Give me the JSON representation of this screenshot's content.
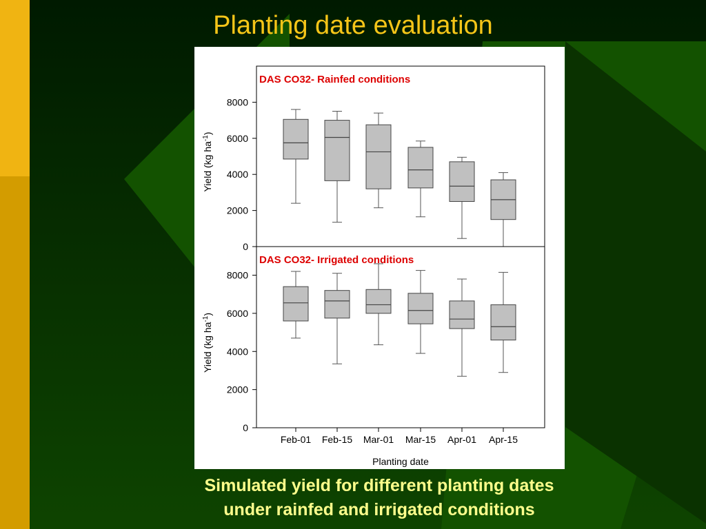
{
  "slide": {
    "title": "Planting date evaluation",
    "caption_line1": "Simulated yield for different planting dates",
    "caption_line2": "under rainfed and irrigated conditions"
  },
  "colors": {
    "background_dark": "#002a00",
    "background_green": "#135200",
    "accent_yellow": "#f0b412",
    "accent_gold": "#d39c00",
    "title_text": "#f5c518",
    "caption_text": "#ffff8c",
    "panel_label": "#dd0000",
    "box_fill": "#c0c0c0"
  },
  "chart_data": [
    {
      "type": "box",
      "panel_label": "DAS CO32- Rainfed conditions",
      "ylabel_main": "Yield (kg ha",
      "ylabel_sup": "-1",
      "ylabel_close": ")",
      "ylim": [
        0,
        10000
      ],
      "yticks": [
        0,
        2000,
        4000,
        6000,
        8000
      ],
      "categories": [
        "Feb-01",
        "Feb-15",
        "Mar-01",
        "Mar-15",
        "Apr-01",
        "Apr-15"
      ],
      "boxes": [
        {
          "min": 2400,
          "q1": 4850,
          "median": 5750,
          "q3": 7050,
          "max": 7600
        },
        {
          "min": 1350,
          "q1": 3650,
          "median": 6050,
          "q3": 7000,
          "max": 7500
        },
        {
          "min": 2150,
          "q1": 3200,
          "median": 5250,
          "q3": 6750,
          "max": 7400
        },
        {
          "min": 1650,
          "q1": 3250,
          "median": 4250,
          "q3": 5500,
          "max": 5850
        },
        {
          "min": 450,
          "q1": 2500,
          "median": 3350,
          "q3": 4700,
          "max": 4950
        },
        {
          "min": 0,
          "q1": 1500,
          "median": 2600,
          "q3": 3700,
          "max": 4100
        }
      ]
    },
    {
      "type": "box",
      "panel_label": "DAS CO32- Irrigated conditions",
      "ylabel_main": "Yield (kg ha",
      "ylabel_sup": "-1",
      "ylabel_close": ")",
      "ylim": [
        0,
        9500
      ],
      "yticks": [
        0,
        2000,
        4000,
        6000,
        8000
      ],
      "categories": [
        "Feb-01",
        "Feb-15",
        "Mar-01",
        "Mar-15",
        "Apr-01",
        "Apr-15"
      ],
      "xlabel": "Planting date",
      "boxes": [
        {
          "min": 4700,
          "q1": 5600,
          "median": 6550,
          "q3": 7400,
          "max": 8200
        },
        {
          "min": 3350,
          "q1": 5750,
          "median": 6650,
          "q3": 7200,
          "max": 8100
        },
        {
          "min": 4350,
          "q1": 6000,
          "median": 6450,
          "q3": 7250,
          "max": 8600
        },
        {
          "min": 3900,
          "q1": 5450,
          "median": 6150,
          "q3": 7050,
          "max": 8250
        },
        {
          "min": 2700,
          "q1": 5200,
          "median": 5700,
          "q3": 6650,
          "max": 7800
        },
        {
          "min": 2900,
          "q1": 4600,
          "median": 5300,
          "q3": 6450,
          "max": 8150
        }
      ]
    }
  ]
}
